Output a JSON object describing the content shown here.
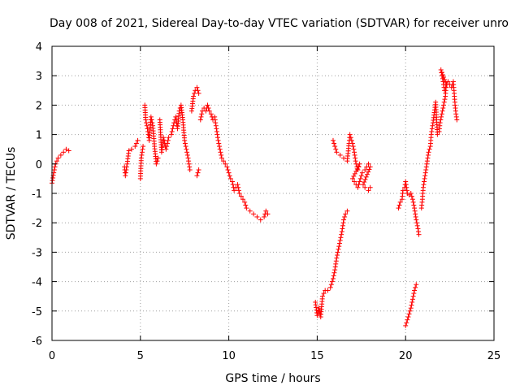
{
  "chart_data": {
    "type": "scatter",
    "title": "Day 008 of 2021, Sidereal Day-to-day VTEC variation (SDTVAR) for receiver unro",
    "xlabel": "GPS time / hours",
    "ylabel": "SDTVAR / TECUs",
    "xlim": [
      0,
      25
    ],
    "ylim": [
      -6,
      4
    ],
    "xticks": [
      0,
      5,
      10,
      15,
      20,
      25
    ],
    "yticks": [
      -6,
      -5,
      -4,
      -3,
      -2,
      -1,
      0,
      1,
      2,
      3,
      4
    ],
    "grid": true,
    "marker": "+",
    "color": "#ff0000",
    "series": [
      {
        "name": "SDTVAR",
        "segments": [
          [
            [
              0.0,
              -0.65
            ],
            [
              0.1,
              -0.3
            ],
            [
              0.2,
              0.0
            ],
            [
              0.35,
              0.2
            ],
            [
              0.5,
              0.3
            ],
            [
              0.65,
              0.4
            ],
            [
              0.8,
              0.5
            ],
            [
              0.95,
              0.45
            ]
          ],
          [
            [
              4.1,
              -0.1
            ],
            [
              4.15,
              -0.4
            ],
            [
              4.25,
              0.0
            ],
            [
              4.35,
              0.45
            ],
            [
              4.5,
              0.5
            ],
            [
              4.7,
              0.6
            ],
            [
              4.85,
              0.8
            ],
            [
              5.0,
              -0.5
            ],
            [
              5.05,
              0.2
            ],
            [
              5.15,
              0.6
            ],
            [
              5.25,
              2.0
            ],
            [
              5.3,
              1.5
            ],
            [
              5.4,
              1.2
            ],
            [
              5.5,
              0.8
            ],
            [
              5.6,
              1.6
            ],
            [
              5.7,
              1.3
            ],
            [
              5.8,
              0.6
            ],
            [
              5.9,
              0.0
            ],
            [
              6.0,
              0.2
            ],
            [
              6.1,
              1.5
            ],
            [
              6.2,
              0.4
            ],
            [
              6.3,
              0.9
            ],
            [
              6.45,
              0.5
            ],
            [
              6.6,
              0.9
            ],
            [
              6.75,
              1.0
            ],
            [
              6.9,
              1.4
            ],
            [
              7.0,
              1.6
            ],
            [
              7.1,
              1.2
            ],
            [
              7.2,
              1.8
            ],
            [
              7.3,
              2.0
            ],
            [
              7.4,
              1.5
            ],
            [
              7.5,
              0.8
            ],
            [
              7.6,
              0.5
            ],
            [
              7.7,
              0.2
            ],
            [
              7.8,
              -0.2
            ],
            [
              7.9,
              1.8
            ],
            [
              8.0,
              2.3
            ],
            [
              8.1,
              2.5
            ],
            [
              8.2,
              2.6
            ],
            [
              8.3,
              2.4
            ],
            [
              8.2,
              -0.4
            ],
            [
              8.3,
              -0.2
            ],
            [
              8.4,
              1.5
            ],
            [
              8.5,
              1.8
            ],
            [
              8.6,
              1.9
            ],
            [
              8.7,
              1.8
            ],
            [
              8.8,
              2.0
            ],
            [
              8.9,
              1.8
            ],
            [
              9.0,
              1.7
            ],
            [
              9.1,
              1.5
            ],
            [
              9.2,
              1.6
            ],
            [
              9.3,
              1.2
            ],
            [
              9.4,
              0.8
            ],
            [
              9.5,
              0.5
            ],
            [
              9.6,
              0.2
            ],
            [
              9.7,
              0.1
            ],
            [
              9.8,
              0.0
            ],
            [
              9.9,
              -0.1
            ],
            [
              10.0,
              -0.3
            ],
            [
              10.1,
              -0.5
            ],
            [
              10.2,
              -0.6
            ],
            [
              10.3,
              -0.9
            ],
            [
              10.5,
              -0.7
            ],
            [
              10.6,
              -1.0
            ],
            [
              10.7,
              -1.1
            ],
            [
              10.8,
              -1.2
            ],
            [
              10.9,
              -1.3
            ],
            [
              11.0,
              -1.5
            ],
            [
              11.2,
              -1.6
            ],
            [
              11.4,
              -1.7
            ],
            [
              11.6,
              -1.8
            ],
            [
              11.8,
              -1.9
            ],
            [
              12.0,
              -1.8
            ],
            [
              12.1,
              -1.6
            ],
            [
              12.2,
              -1.7
            ]
          ],
          [
            [
              14.9,
              -4.7
            ],
            [
              15.0,
              -5.15
            ],
            [
              15.1,
              -4.9
            ],
            [
              15.2,
              -5.2
            ],
            [
              15.3,
              -4.5
            ],
            [
              15.45,
              -4.3
            ],
            [
              15.6,
              -4.3
            ],
            [
              15.75,
              -4.2
            ],
            [
              15.9,
              -3.9
            ],
            [
              16.0,
              -3.6
            ],
            [
              16.1,
              -3.2
            ],
            [
              16.2,
              -2.9
            ],
            [
              16.3,
              -2.6
            ],
            [
              16.4,
              -2.3
            ],
            [
              16.5,
              -1.9
            ],
            [
              16.6,
              -1.7
            ],
            [
              16.7,
              -1.6
            ],
            [
              15.9,
              0.8
            ],
            [
              16.0,
              0.6
            ],
            [
              16.1,
              0.4
            ],
            [
              16.3,
              0.3
            ],
            [
              16.5,
              0.2
            ],
            [
              16.7,
              0.1
            ],
            [
              16.8,
              0.7
            ],
            [
              16.85,
              1.0
            ],
            [
              17.0,
              0.7
            ],
            [
              17.1,
              0.4
            ],
            [
              17.2,
              0.0
            ],
            [
              17.3,
              -0.2
            ],
            [
              17.4,
              0.0
            ],
            [
              17.0,
              -0.5
            ],
            [
              17.1,
              -0.6
            ],
            [
              17.3,
              -0.8
            ],
            [
              17.45,
              -0.5
            ],
            [
              17.55,
              -0.3
            ],
            [
              17.7,
              -0.2
            ],
            [
              17.8,
              -0.1
            ],
            [
              17.9,
              0.0
            ],
            [
              18.0,
              -0.1
            ],
            [
              17.6,
              -0.7
            ],
            [
              17.7,
              -0.8
            ],
            [
              17.9,
              -0.9
            ],
            [
              18.0,
              -0.8
            ]
          ],
          [
            [
              19.6,
              -1.5
            ],
            [
              19.7,
              -1.3
            ],
            [
              19.8,
              -1.2
            ],
            [
              19.85,
              -0.9
            ],
            [
              19.95,
              -0.8
            ],
            [
              20.0,
              -0.6
            ],
            [
              20.1,
              -1.0
            ],
            [
              20.2,
              -1.05
            ],
            [
              20.3,
              -1.0
            ],
            [
              20.4,
              -1.2
            ],
            [
              20.5,
              -1.5
            ],
            [
              20.6,
              -1.9
            ],
            [
              20.7,
              -2.2
            ],
            [
              20.75,
              -2.4
            ],
            [
              20.0,
              -5.5
            ],
            [
              20.1,
              -5.3
            ],
            [
              20.2,
              -5.1
            ],
            [
              20.3,
              -4.9
            ],
            [
              20.4,
              -4.6
            ],
            [
              20.5,
              -4.3
            ],
            [
              20.6,
              -4.1
            ],
            [
              20.9,
              -1.5
            ],
            [
              20.95,
              -1.2
            ],
            [
              21.0,
              -0.8
            ],
            [
              21.1,
              -0.4
            ],
            [
              21.2,
              0.0
            ],
            [
              21.3,
              0.4
            ],
            [
              21.4,
              0.6
            ],
            [
              21.45,
              1.0
            ],
            [
              21.55,
              1.4
            ],
            [
              21.7,
              2.1
            ],
            [
              21.8,
              1.0
            ],
            [
              21.9,
              1.1
            ],
            [
              21.95,
              1.4
            ],
            [
              22.05,
              1.7
            ],
            [
              22.15,
              2.0
            ],
            [
              22.25,
              2.3
            ],
            [
              22.3,
              2.7
            ],
            [
              22.0,
              3.2
            ],
            [
              22.1,
              2.9
            ],
            [
              22.2,
              2.5
            ],
            [
              22.4,
              2.8
            ],
            [
              22.5,
              2.7
            ],
            [
              22.6,
              2.6
            ],
            [
              22.7,
              2.8
            ],
            [
              22.75,
              2.4
            ],
            [
              22.8,
              2.0
            ],
            [
              22.85,
              1.7
            ],
            [
              22.9,
              1.5
            ]
          ]
        ]
      }
    ]
  }
}
